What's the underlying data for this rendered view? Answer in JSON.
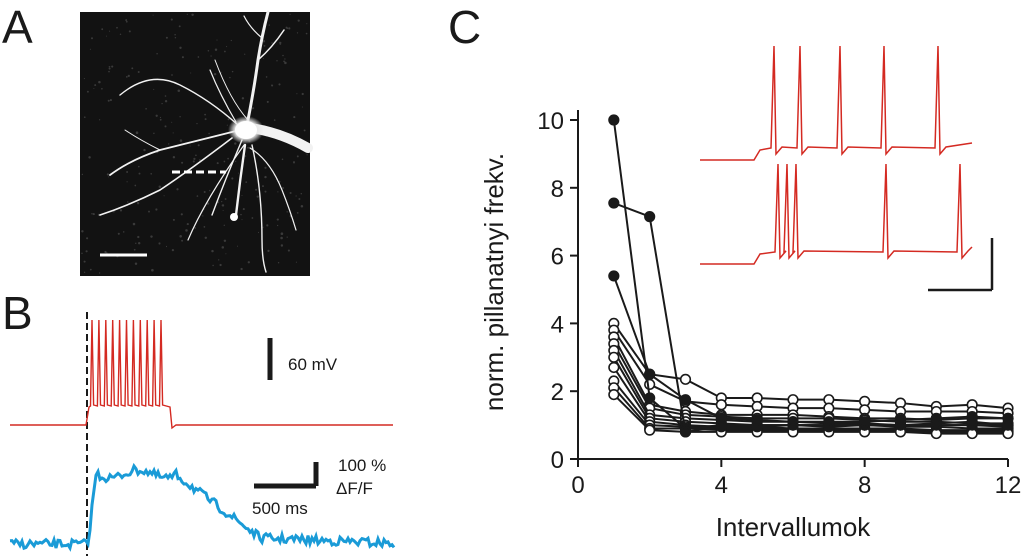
{
  "panels": {
    "a": {
      "letter": "A"
    },
    "b": {
      "letter": "B",
      "voltage_scale": "60 mV",
      "time_scale": "500 ms",
      "dff_scale_line1": "100 %",
      "dff_scale_line2": "ΔF/F"
    },
    "c": {
      "letter": "C"
    }
  },
  "colors": {
    "ephys": "#d42a22",
    "calcium": "#1a9bd7",
    "axis": "#1a1a1a"
  },
  "chart_data": {
    "type": "line",
    "xlabel": "Intervallumok",
    "ylabel": "norm. pillanatnyi frekv.",
    "xlim": [
      0,
      12
    ],
    "ylim": [
      0,
      10
    ],
    "xticks": [
      0,
      4,
      8,
      12
    ],
    "yticks": [
      0,
      2,
      4,
      6,
      8,
      10
    ],
    "series": [
      {
        "filled": true,
        "x": [
          1,
          2,
          3,
          4,
          5,
          6,
          7,
          8,
          9,
          10,
          11,
          12
        ],
        "y": [
          10.0,
          1.8,
          0.9,
          1.0,
          1.0,
          1.0,
          1.0,
          1.0,
          1.0,
          1.0,
          1.0,
          1.0
        ]
      },
      {
        "filled": true,
        "x": [
          1,
          2,
          3,
          4,
          5,
          6,
          7,
          8,
          9,
          10,
          11,
          12
        ],
        "y": [
          7.55,
          7.15,
          0.8,
          0.95,
          0.95,
          1.0,
          0.95,
          1.0,
          1.0,
          1.05,
          1.1,
          1.0
        ]
      },
      {
        "filled": true,
        "x": [
          1,
          2,
          3,
          4,
          5,
          6,
          7,
          8,
          9,
          10,
          11,
          12
        ],
        "y": [
          5.4,
          2.5,
          1.75,
          1.2,
          1.15,
          1.1,
          1.1,
          1.1,
          1.15,
          1.2,
          1.25,
          1.2
        ]
      },
      {
        "filled": false,
        "x": [
          1,
          2,
          3,
          4,
          5,
          6,
          7,
          8,
          9,
          10,
          11,
          12
        ],
        "y": [
          4.0,
          2.5,
          2.35,
          1.8,
          1.8,
          1.75,
          1.75,
          1.7,
          1.65,
          1.55,
          1.6,
          1.5
        ]
      },
      {
        "filled": false,
        "x": [
          1,
          2,
          3,
          4,
          5,
          6,
          7,
          8,
          9,
          10,
          11,
          12
        ],
        "y": [
          3.8,
          2.2,
          1.7,
          1.6,
          1.55,
          1.5,
          1.5,
          1.45,
          1.4,
          1.4,
          1.4,
          1.35
        ]
      },
      {
        "filled": false,
        "x": [
          1,
          2,
          3,
          4,
          5,
          6,
          7,
          8,
          9,
          10,
          11,
          12
        ],
        "y": [
          3.6,
          1.6,
          1.4,
          1.3,
          1.3,
          1.3,
          1.25,
          1.2,
          1.2,
          1.15,
          1.2,
          1.2
        ]
      },
      {
        "filled": false,
        "x": [
          1,
          2,
          3,
          4,
          5,
          6,
          7,
          8,
          9,
          10,
          11,
          12
        ],
        "y": [
          3.4,
          1.5,
          1.3,
          1.25,
          1.2,
          1.2,
          1.2,
          1.15,
          1.1,
          1.1,
          1.05,
          1.05
        ]
      },
      {
        "filled": false,
        "x": [
          1,
          2,
          3,
          4,
          5,
          6,
          7,
          8,
          9,
          10,
          11,
          12
        ],
        "y": [
          3.2,
          1.3,
          1.2,
          1.15,
          1.1,
          1.1,
          1.05,
          1.05,
          1.0,
          1.0,
          1.0,
          0.95
        ]
      },
      {
        "filled": false,
        "x": [
          1,
          2,
          3,
          4,
          5,
          6,
          7,
          8,
          9,
          10,
          11,
          12
        ],
        "y": [
          3.0,
          1.2,
          1.1,
          1.05,
          1.0,
          1.0,
          1.0,
          1.0,
          0.95,
          0.95,
          0.9,
          0.9
        ]
      },
      {
        "filled": false,
        "x": [
          1,
          2,
          3,
          4,
          5,
          6,
          7,
          8,
          9,
          10,
          11,
          12
        ],
        "y": [
          2.7,
          1.1,
          1.0,
          0.95,
          0.95,
          0.9,
          0.9,
          0.9,
          0.9,
          0.85,
          0.85,
          0.85
        ]
      },
      {
        "filled": false,
        "x": [
          1,
          2,
          3,
          4,
          5,
          6,
          7,
          8,
          9,
          10,
          11,
          12
        ],
        "y": [
          2.3,
          1.0,
          0.95,
          0.9,
          0.9,
          0.9,
          0.85,
          0.85,
          0.85,
          0.8,
          0.8,
          0.8
        ]
      },
      {
        "filled": false,
        "x": [
          1,
          2,
          3,
          4,
          5,
          6,
          7,
          8,
          9,
          10,
          11,
          12
        ],
        "y": [
          2.1,
          0.9,
          0.9,
          0.85,
          0.85,
          0.85,
          0.85,
          0.85,
          0.85,
          0.8,
          0.8,
          0.8
        ]
      },
      {
        "filled": false,
        "x": [
          1,
          2,
          3,
          4,
          5,
          6,
          7,
          8,
          9,
          10,
          11,
          12
        ],
        "y": [
          1.9,
          0.85,
          0.8,
          0.8,
          0.8,
          0.8,
          0.8,
          0.8,
          0.8,
          0.75,
          0.75,
          0.75
        ]
      }
    ]
  }
}
